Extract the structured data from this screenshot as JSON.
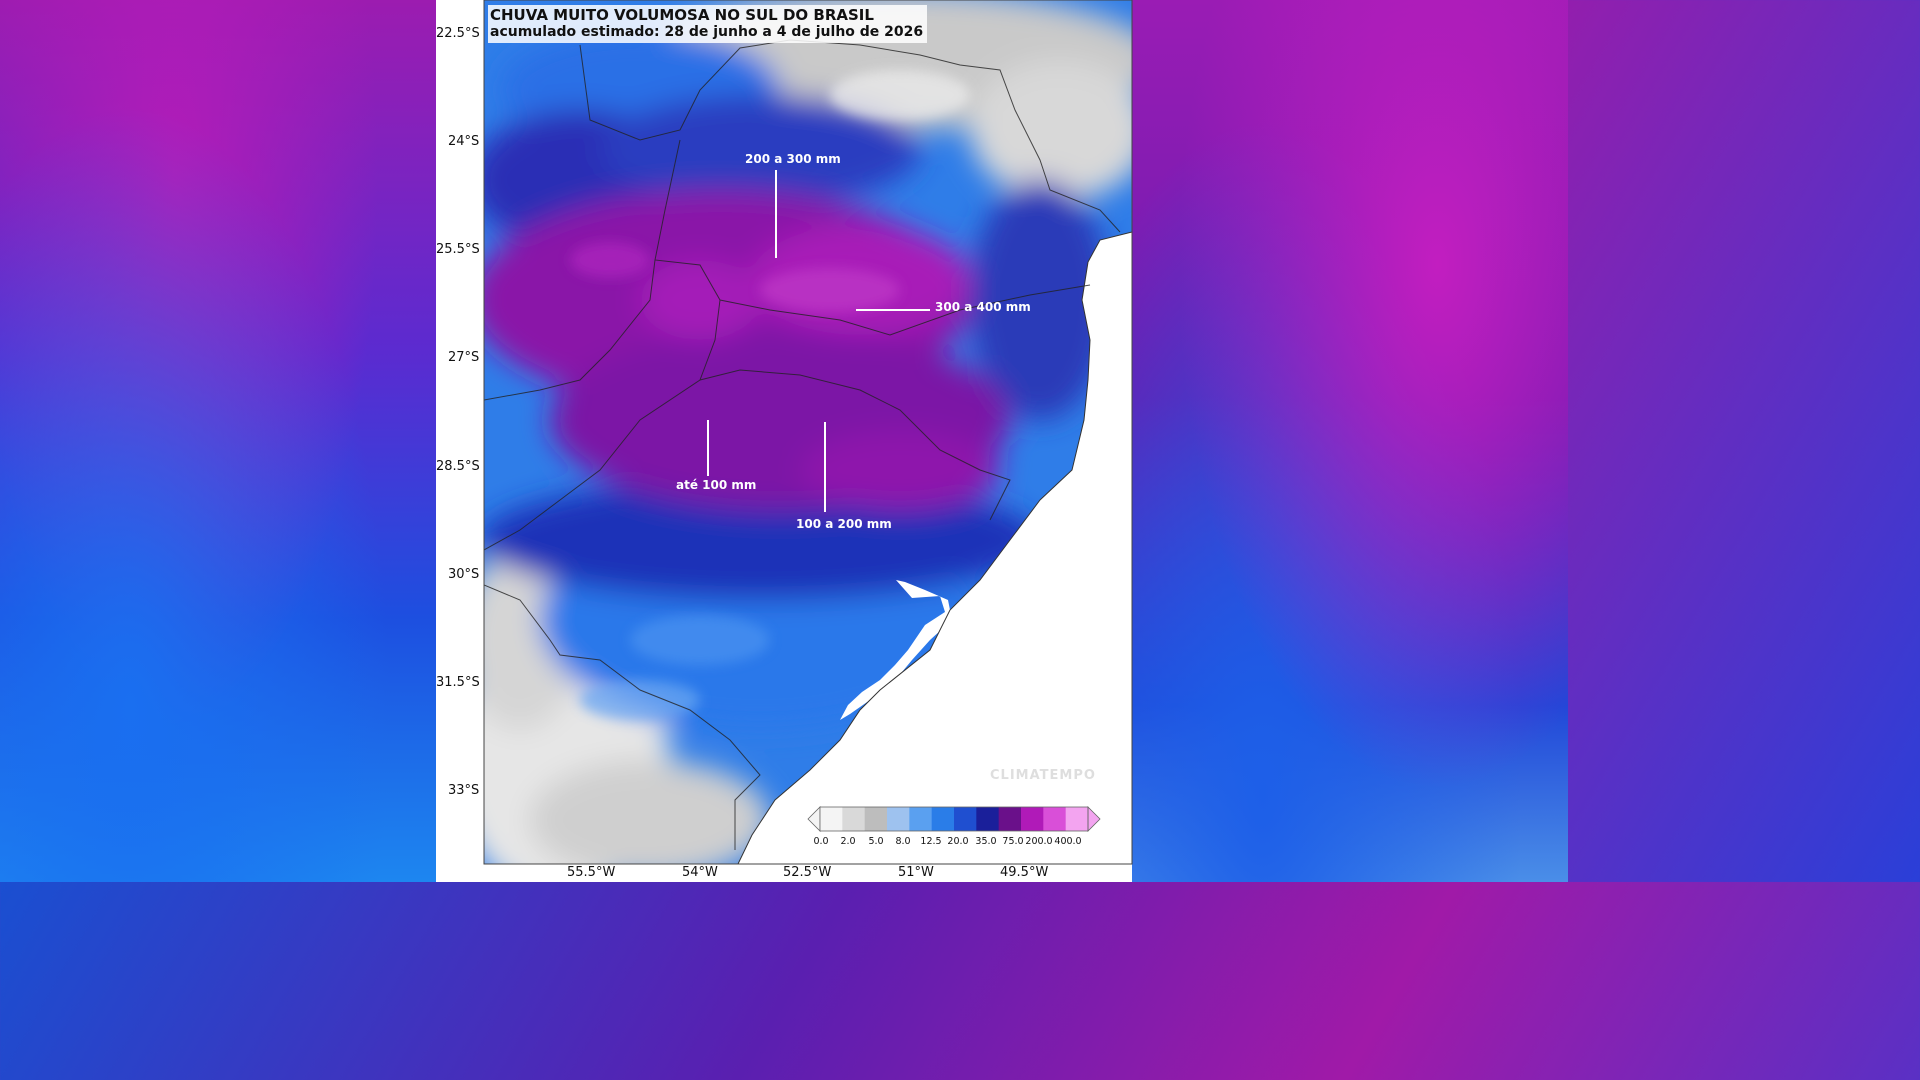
{
  "map": {
    "title": "CHUVA MUITO VOLUMOSA NO SUL DO BRASIL",
    "subtitle": "acumulado estimado: 28 de junho a 4 de julho de 2026",
    "lat_labels": [
      "22.5°S",
      "24°S",
      "25.5°S",
      "27°S",
      "28.5°S",
      "30°S",
      "31.5°S",
      "33°S"
    ],
    "lon_labels": [
      "55.5°W",
      "54°W",
      "52.5°W",
      "51°W",
      "49.5°W"
    ],
    "annotations": {
      "a200_300": "200 a 300 mm",
      "a300_400": "300 a 400 mm",
      "ate100": "até 100 mm",
      "a100_200": "100 a 200 mm"
    },
    "legend": {
      "ticks": [
        "0.0",
        "2.0",
        "5.0",
        "8.0",
        "12.5",
        "20.0",
        "35.0",
        "75.0",
        "200.0",
        "400.0"
      ],
      "colors": [
        "#f4f4f4",
        "#d9d9d9",
        "#bdbdbd",
        "#9ec2ef",
        "#5aa0f0",
        "#2a7de8",
        "#1f4fd0",
        "#1a1f9a",
        "#6a108a",
        "#b01ab8",
        "#d94fd8",
        "#f3a4f0"
      ]
    },
    "watermark": "CLIMATEMPO"
  }
}
